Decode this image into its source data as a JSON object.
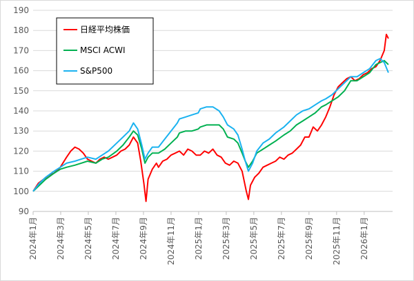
{
  "chart_data": {
    "type": "line",
    "y_ticks": [
      90,
      100,
      110,
      120,
      130,
      140,
      150,
      160,
      170,
      180,
      190
    ],
    "ylim": [
      90,
      190
    ],
    "x_ticks": [
      "2024年1月",
      "2024年3月",
      "2024年5月",
      "2024年7月",
      "2024年9月",
      "2024年11月",
      "2025年1月",
      "2025年3月",
      "2025年5月",
      "2025年7月",
      "2025年9月",
      "2025年11月",
      "2026年1月"
    ],
    "grid": "horizontal",
    "legend_position": "top-left",
    "series": [
      {
        "name": "日経平均株価",
        "color": "#ff0000",
        "values": [
          [
            0,
            100
          ],
          [
            0.25,
            104
          ],
          [
            0.5,
            106
          ],
          [
            0.75,
            108
          ],
          [
            1,
            109
          ],
          [
            1.3,
            112
          ],
          [
            1.6,
            117
          ],
          [
            1.8,
            120
          ],
          [
            2,
            122
          ],
          [
            2.2,
            121
          ],
          [
            2.4,
            119
          ],
          [
            2.6,
            116
          ],
          [
            2.8,
            115
          ],
          [
            3,
            114
          ],
          [
            3.2,
            116
          ],
          [
            3.4,
            117
          ],
          [
            3.6,
            116
          ],
          [
            3.8,
            117
          ],
          [
            4,
            118
          ],
          [
            4.2,
            120
          ],
          [
            4.4,
            121
          ],
          [
            4.6,
            123
          ],
          [
            4.8,
            127
          ],
          [
            5,
            124
          ],
          [
            5.15,
            115
          ],
          [
            5.3,
            104
          ],
          [
            5.4,
            95
          ],
          [
            5.5,
            106
          ],
          [
            5.7,
            111
          ],
          [
            5.9,
            114
          ],
          [
            6,
            112
          ],
          [
            6.2,
            115
          ],
          [
            6.4,
            116
          ],
          [
            6.6,
            118
          ],
          [
            6.8,
            119
          ],
          [
            7,
            120
          ],
          [
            7.2,
            118
          ],
          [
            7.4,
            121
          ],
          [
            7.6,
            120
          ],
          [
            7.8,
            118
          ],
          [
            8,
            118
          ],
          [
            8.2,
            120
          ],
          [
            8.4,
            119
          ],
          [
            8.6,
            121
          ],
          [
            8.8,
            118
          ],
          [
            9,
            117
          ],
          [
            9.2,
            114
          ],
          [
            9.4,
            113
          ],
          [
            9.6,
            115
          ],
          [
            9.8,
            114
          ],
          [
            10,
            110
          ],
          [
            10.2,
            100
          ],
          [
            10.3,
            96
          ],
          [
            10.4,
            103
          ],
          [
            10.6,
            107
          ],
          [
            10.8,
            109
          ],
          [
            11,
            112
          ],
          [
            11.2,
            113
          ],
          [
            11.4,
            114
          ],
          [
            11.6,
            115
          ],
          [
            11.8,
            117
          ],
          [
            12,
            116
          ],
          [
            12.2,
            118
          ],
          [
            12.4,
            119
          ],
          [
            12.6,
            121
          ],
          [
            12.8,
            123
          ],
          [
            13,
            127
          ],
          [
            13.2,
            127
          ],
          [
            13.4,
            132
          ],
          [
            13.6,
            130
          ],
          [
            13.8,
            133
          ],
          [
            14,
            137
          ],
          [
            14.2,
            142
          ],
          [
            14.4,
            148
          ],
          [
            14.6,
            152
          ],
          [
            14.8,
            154
          ],
          [
            15,
            156
          ],
          [
            15.2,
            157
          ],
          [
            15.4,
            155
          ],
          [
            15.6,
            156
          ],
          [
            15.8,
            158
          ],
          [
            16,
            159
          ],
          [
            16.2,
            161
          ],
          [
            16.4,
            162
          ],
          [
            16.6,
            165
          ],
          [
            16.8,
            170
          ],
          [
            16.9,
            178
          ],
          [
            17,
            176
          ]
        ]
      },
      {
        "name": "MSCI ACWI",
        "color": "#00b050",
        "values": [
          [
            0,
            100
          ],
          [
            0.3,
            103
          ],
          [
            0.6,
            106
          ],
          [
            1,
            109
          ],
          [
            1.3,
            111
          ],
          [
            1.6,
            112
          ],
          [
            2,
            113
          ],
          [
            2.3,
            114
          ],
          [
            2.6,
            115
          ],
          [
            3,
            114
          ],
          [
            3.3,
            116
          ],
          [
            3.6,
            117
          ],
          [
            4,
            120
          ],
          [
            4.3,
            123
          ],
          [
            4.6,
            127
          ],
          [
            4.8,
            130
          ],
          [
            5,
            128
          ],
          [
            5.2,
            121
          ],
          [
            5.35,
            114
          ],
          [
            5.5,
            117
          ],
          [
            5.7,
            119
          ],
          [
            6,
            119
          ],
          [
            6.3,
            121
          ],
          [
            6.6,
            124
          ],
          [
            6.9,
            127
          ],
          [
            7,
            129
          ],
          [
            7.3,
            130
          ],
          [
            7.6,
            130
          ],
          [
            7.9,
            131
          ],
          [
            8,
            132
          ],
          [
            8.3,
            133
          ],
          [
            8.6,
            133
          ],
          [
            8.9,
            133
          ],
          [
            9.1,
            131
          ],
          [
            9.3,
            127
          ],
          [
            9.6,
            126
          ],
          [
            9.8,
            124
          ],
          [
            10,
            119
          ],
          [
            10.15,
            115
          ],
          [
            10.3,
            112
          ],
          [
            10.5,
            115
          ],
          [
            10.7,
            119
          ],
          [
            11,
            121
          ],
          [
            11.3,
            123
          ],
          [
            11.6,
            125
          ],
          [
            12,
            128
          ],
          [
            12.3,
            130
          ],
          [
            12.6,
            133
          ],
          [
            12.9,
            135
          ],
          [
            13.2,
            137
          ],
          [
            13.5,
            139
          ],
          [
            13.8,
            142
          ],
          [
            14,
            143
          ],
          [
            14.3,
            145
          ],
          [
            14.6,
            147
          ],
          [
            14.9,
            150
          ],
          [
            15.2,
            155
          ],
          [
            15.5,
            155
          ],
          [
            15.8,
            157
          ],
          [
            16.1,
            159
          ],
          [
            16.4,
            163
          ],
          [
            16.6,
            164
          ],
          [
            16.8,
            165
          ],
          [
            17,
            163
          ]
        ]
      },
      {
        "name": "S&P500",
        "color": "#1ab2f0",
        "values": [
          [
            0,
            100
          ],
          [
            0.3,
            104
          ],
          [
            0.6,
            107
          ],
          [
            1,
            110
          ],
          [
            1.3,
            112
          ],
          [
            1.6,
            114
          ],
          [
            2,
            115
          ],
          [
            2.3,
            116
          ],
          [
            2.6,
            117
          ],
          [
            3,
            116
          ],
          [
            3.3,
            118
          ],
          [
            3.6,
            120
          ],
          [
            4,
            124
          ],
          [
            4.3,
            127
          ],
          [
            4.6,
            130
          ],
          [
            4.8,
            134
          ],
          [
            5,
            131
          ],
          [
            5.2,
            123
          ],
          [
            5.35,
            116
          ],
          [
            5.5,
            119
          ],
          [
            5.7,
            122
          ],
          [
            6,
            122
          ],
          [
            6.3,
            126
          ],
          [
            6.6,
            130
          ],
          [
            6.9,
            134
          ],
          [
            7,
            136
          ],
          [
            7.3,
            137
          ],
          [
            7.6,
            138
          ],
          [
            7.9,
            139
          ],
          [
            8,
            141
          ],
          [
            8.3,
            142
          ],
          [
            8.6,
            142
          ],
          [
            8.9,
            140
          ],
          [
            9.1,
            137
          ],
          [
            9.3,
            133
          ],
          [
            9.6,
            131
          ],
          [
            9.8,
            128
          ],
          [
            10,
            121
          ],
          [
            10.15,
            115
          ],
          [
            10.3,
            110
          ],
          [
            10.5,
            114
          ],
          [
            10.7,
            120
          ],
          [
            11,
            124
          ],
          [
            11.3,
            126
          ],
          [
            11.6,
            129
          ],
          [
            12,
            132
          ],
          [
            12.3,
            135
          ],
          [
            12.6,
            138
          ],
          [
            12.9,
            140
          ],
          [
            13.2,
            141
          ],
          [
            13.5,
            143
          ],
          [
            13.8,
            145
          ],
          [
            14,
            146
          ],
          [
            14.3,
            148
          ],
          [
            14.6,
            151
          ],
          [
            14.9,
            154
          ],
          [
            15.2,
            157
          ],
          [
            15.5,
            157
          ],
          [
            15.8,
            159
          ],
          [
            16.1,
            161
          ],
          [
            16.4,
            165
          ],
          [
            16.6,
            166
          ],
          [
            16.8,
            164
          ],
          [
            17,
            159
          ]
        ]
      }
    ]
  }
}
